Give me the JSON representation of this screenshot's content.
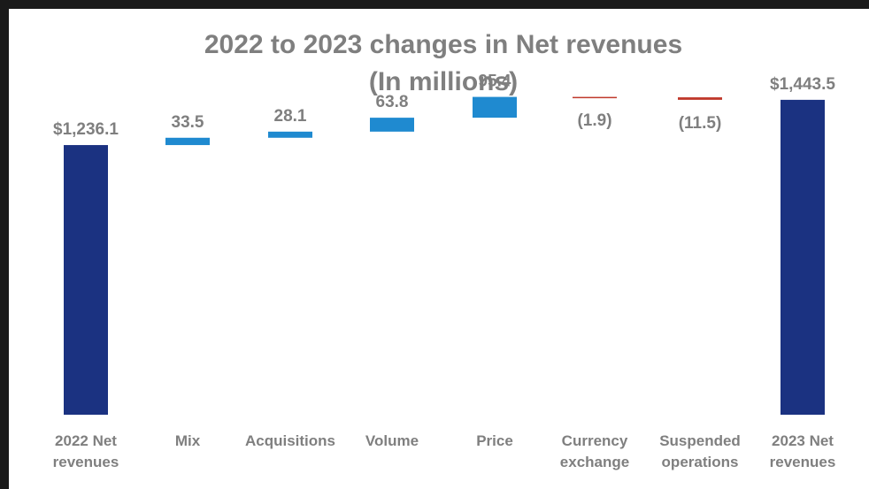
{
  "chart_data": {
    "type": "waterfall",
    "title_lines": [
      "2022 to 2023 changes in Net revenues",
      "(In millions)"
    ],
    "categories": [
      [
        "2022 Net",
        "revenues"
      ],
      [
        "Mix"
      ],
      [
        "Acquisitions"
      ],
      [
        "Volume"
      ],
      [
        "Price"
      ],
      [
        "Currency",
        "exchange"
      ],
      [
        "Suspended",
        "operations"
      ],
      [
        "2023 Net",
        "revenues"
      ]
    ],
    "values": [
      1236.1,
      33.5,
      28.1,
      63.8,
      95.4,
      -1.9,
      -11.5,
      1443.5
    ],
    "kinds": [
      "total",
      "delta",
      "delta",
      "delta",
      "delta",
      "delta",
      "delta",
      "total"
    ],
    "value_labels": [
      "$1,236.1",
      "33.5",
      "28.1",
      "63.8",
      "95.4",
      "(1.9)",
      "(11.5)",
      "$1,443.5"
    ],
    "colors": {
      "total": "#1b3281",
      "increase": "#1f8ad0",
      "decrease": "#c0392b",
      "text": "#7f7f7f"
    },
    "xlabel": "",
    "ylabel": "",
    "grid": false,
    "legend": "none"
  }
}
